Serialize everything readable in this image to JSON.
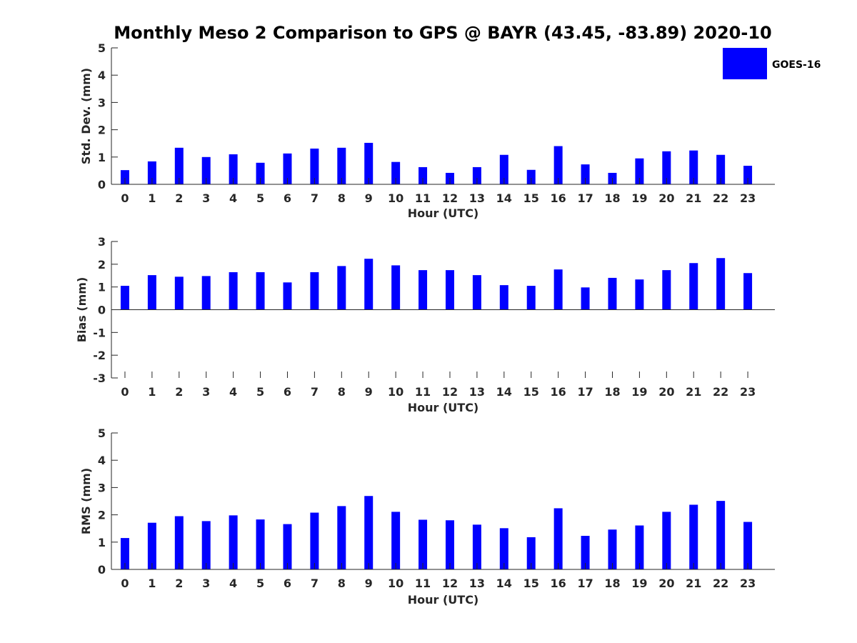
{
  "chart_data": {
    "title": "Monthly Meso 2 Comparison to GPS @ BAYR (43.45, -83.89) 2020-10",
    "legend": {
      "entries": [
        "GOES-16"
      ],
      "placement": "top-right"
    },
    "series_color": "#0000ff",
    "panels": [
      {
        "type": "bar",
        "series_name": "GOES-16",
        "categories": [
          "0",
          "1",
          "2",
          "3",
          "4",
          "5",
          "6",
          "7",
          "8",
          "9",
          "10",
          "11",
          "12",
          "13",
          "14",
          "15",
          "16",
          "17",
          "18",
          "19",
          "20",
          "21",
          "22",
          "23"
        ],
        "values": [
          0.52,
          0.84,
          1.34,
          1.0,
          1.1,
          0.79,
          1.13,
          1.31,
          1.34,
          1.52,
          0.82,
          0.63,
          0.42,
          0.63,
          1.08,
          0.53,
          1.4,
          0.73,
          0.42,
          0.95,
          1.21,
          1.24,
          1.08,
          0.68
        ],
        "xlabel": "Hour (UTC)",
        "ylabel": "Std. Dev. (mm)",
        "ylim": [
          0,
          5
        ],
        "yticks": [
          0,
          1,
          2,
          3,
          4,
          5
        ],
        "grid": false
      },
      {
        "type": "bar",
        "series_name": "GOES-16",
        "categories": [
          "0",
          "1",
          "2",
          "3",
          "4",
          "5",
          "6",
          "7",
          "8",
          "9",
          "10",
          "11",
          "12",
          "13",
          "14",
          "15",
          "16",
          "17",
          "18",
          "19",
          "20",
          "21",
          "22",
          "23"
        ],
        "values": [
          1.05,
          1.52,
          1.45,
          1.48,
          1.65,
          1.65,
          1.2,
          1.65,
          1.92,
          2.24,
          1.95,
          1.74,
          1.74,
          1.52,
          1.08,
          1.05,
          1.77,
          0.98,
          1.4,
          1.33,
          1.74,
          2.05,
          2.27,
          1.61
        ],
        "xlabel": "Hour (UTC)",
        "ylabel": "Bias (mm)",
        "ylim": [
          -3,
          3
        ],
        "yticks": [
          -3,
          -2,
          -1,
          0,
          1,
          2,
          3
        ],
        "grid": false
      },
      {
        "type": "bar",
        "series_name": "GOES-16",
        "categories": [
          "0",
          "1",
          "2",
          "3",
          "4",
          "5",
          "6",
          "7",
          "8",
          "9",
          "10",
          "11",
          "12",
          "13",
          "14",
          "15",
          "16",
          "17",
          "18",
          "19",
          "20",
          "21",
          "22",
          "23"
        ],
        "values": [
          1.15,
          1.71,
          1.95,
          1.77,
          1.98,
          1.83,
          1.66,
          2.08,
          2.32,
          2.69,
          2.11,
          1.82,
          1.8,
          1.64,
          1.51,
          1.18,
          2.24,
          1.23,
          1.46,
          1.61,
          2.11,
          2.37,
          2.51,
          1.74
        ],
        "xlabel": "Hour (UTC)",
        "ylabel": "RMS (mm)",
        "ylim": [
          0,
          5
        ],
        "yticks": [
          0,
          1,
          2,
          3,
          4,
          5
        ],
        "grid": false
      }
    ]
  }
}
